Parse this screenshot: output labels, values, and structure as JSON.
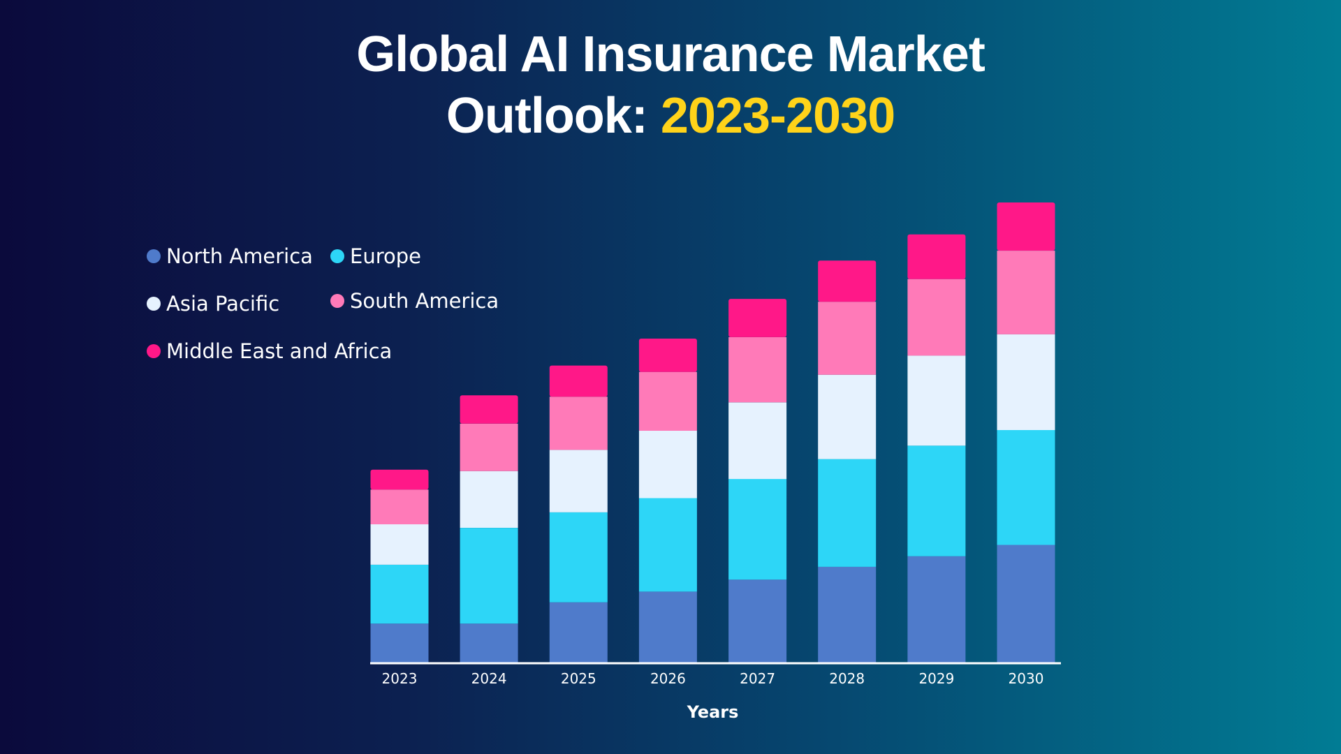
{
  "title": {
    "line1": "Global AI Insurance Market",
    "line2_prefix": "Outlook: ",
    "line2_accent": "2023-2030"
  },
  "colors": {
    "title_accent": "#ffd31a",
    "axis_line": "#ffffff"
  },
  "chart_data": {
    "type": "bar",
    "stacked": true,
    "title": "Global AI Insurance Market Outlook: 2023-2030",
    "xlabel": "Years",
    "ylabel": "",
    "categories": [
      "2023",
      "2024",
      "2025",
      "2026",
      "2027",
      "2028",
      "2029",
      "2030"
    ],
    "ylim": [
      0,
      650
    ],
    "grid": false,
    "legend_position": "top-left",
    "series": [
      {
        "name": "North America",
        "color": "#4f7bcb",
        "values": [
          55,
          55,
          85,
          100,
          117,
          135,
          150,
          166
        ]
      },
      {
        "name": "Europe",
        "color": "#2dd6f7",
        "values": [
          83,
          135,
          127,
          132,
          142,
          152,
          156,
          162
        ]
      },
      {
        "name": "Asia Pacific",
        "color": "#e6f2fe",
        "values": [
          57,
          80,
          88,
          95,
          108,
          119,
          127,
          135
        ]
      },
      {
        "name": "South America",
        "color": "#ff7ab8",
        "values": [
          49,
          67,
          75,
          83,
          92,
          103,
          108,
          118
        ]
      },
      {
        "name": "Middle East and Africa",
        "color": "#ff1888",
        "values": [
          28,
          40,
          44,
          47,
          54,
          58,
          63,
          68
        ]
      }
    ]
  }
}
